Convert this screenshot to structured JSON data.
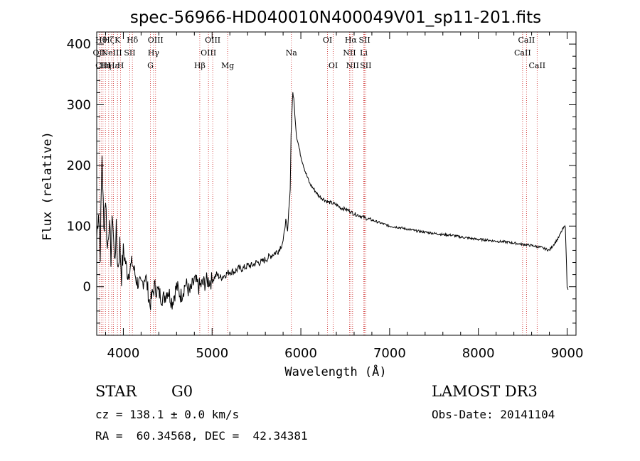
{
  "chart_data": {
    "type": "line",
    "title": "spec-56966-HD040010N400049V01_sp11-201.fits",
    "xlabel": "Wavelength (Å)",
    "ylabel": "Flux (relative)",
    "xlim": [
      3700,
      9100
    ],
    "ylim": [
      -80,
      420
    ],
    "xticks": [
      4000,
      5000,
      6000,
      7000,
      8000,
      9000
    ],
    "xtick_labels": [
      "4000",
      "5000",
      "6000",
      "7000",
      "8000",
      "9000"
    ],
    "yticks": [
      0,
      100,
      200,
      300,
      400
    ],
    "ytick_labels": [
      "0",
      "100",
      "200",
      "300",
      "400"
    ],
    "series": [
      {
        "name": "spectrum",
        "x": [
          3700,
          3720,
          3740,
          3760,
          3780,
          3800,
          3820,
          3840,
          3860,
          3880,
          3900,
          3920,
          3940,
          3960,
          3980,
          4000,
          4050,
          4100,
          4150,
          4200,
          4250,
          4300,
          4350,
          4400,
          4450,
          4500,
          4550,
          4600,
          4650,
          4700,
          4750,
          4800,
          4850,
          4900,
          4950,
          5000,
          5050,
          5100,
          5150,
          5200,
          5250,
          5300,
          5350,
          5400,
          5450,
          5500,
          5550,
          5600,
          5650,
          5700,
          5750,
          5800,
          5830,
          5850,
          5870,
          5880,
          5890,
          5900,
          5910,
          5920,
          5950,
          6000,
          6050,
          6100,
          6150,
          6200,
          6250,
          6300,
          6350,
          6400,
          6450,
          6500,
          6550,
          6600,
          6650,
          6700,
          6750,
          6800,
          6900,
          7000,
          7100,
          7200,
          7300,
          7400,
          7500,
          7600,
          7700,
          7800,
          7900,
          8000,
          8100,
          8200,
          8300,
          8400,
          8500,
          8600,
          8700,
          8800,
          8900,
          8950,
          8980,
          9000,
          9010
        ],
        "values": [
          80,
          130,
          60,
          220,
          90,
          150,
          60,
          110,
          50,
          120,
          40,
          90,
          30,
          70,
          20,
          60,
          20,
          40,
          10,
          0,
          20,
          -30,
          0,
          -10,
          -20,
          -5,
          -25,
          0,
          -15,
          5,
          -10,
          10,
          0,
          5,
          10,
          10,
          20,
          15,
          20,
          25,
          25,
          30,
          30,
          35,
          35,
          40,
          40,
          45,
          50,
          55,
          60,
          75,
          110,
          90,
          140,
          160,
          250,
          290,
          320,
          310,
          250,
          215,
          190,
          170,
          160,
          150,
          145,
          140,
          138,
          135,
          130,
          128,
          125,
          120,
          118,
          115,
          112,
          110,
          105,
          100,
          98,
          95,
          92,
          90,
          88,
          86,
          85,
          82,
          80,
          78,
          77,
          75,
          74,
          72,
          70,
          68,
          65,
          60,
          80,
          95,
          100,
          0,
          -5
        ]
      }
    ],
    "lines": [
      {
        "wave": 3727,
        "label": "OII",
        "row": 1
      },
      {
        "wave": 3750,
        "label": "Hθ",
        "row": 0
      },
      {
        "wave": 3771,
        "label": "CIII",
        "row": 2
      },
      {
        "wave": 3798,
        "label": "Hη",
        "row": 2
      },
      {
        "wave": 3835,
        "label": "Hζ",
        "row": 0
      },
      {
        "wave": 3869,
        "label": "NeIII",
        "row": 1
      },
      {
        "wave": 3889,
        "label": "Hε",
        "row": 2
      },
      {
        "wave": 3934,
        "label": "K",
        "row": 0
      },
      {
        "wave": 3969,
        "label": "H",
        "row": 2
      },
      {
        "wave": 4072,
        "label": "SII",
        "row": 1
      },
      {
        "wave": 4102,
        "label": "Hδ",
        "row": 0
      },
      {
        "wave": 4305,
        "label": "G",
        "row": 2
      },
      {
        "wave": 4340,
        "label": "Hγ",
        "row": 1
      },
      {
        "wave": 4363,
        "label": "OIII",
        "row": 0
      },
      {
        "wave": 4861,
        "label": "Hβ",
        "row": 2
      },
      {
        "wave": 4959,
        "label": "OIII",
        "row": 1
      },
      {
        "wave": 5007,
        "label": "OIII",
        "row": 0
      },
      {
        "wave": 5175,
        "label": "Mg",
        "row": 2
      },
      {
        "wave": 5893,
        "label": "Na",
        "row": 1
      },
      {
        "wave": 6300,
        "label": "OI",
        "row": 0
      },
      {
        "wave": 6364,
        "label": "OI",
        "row": 2
      },
      {
        "wave": 6548,
        "label": "NII",
        "row": 1
      },
      {
        "wave": 6563,
        "label": "Hα",
        "row": 0
      },
      {
        "wave": 6583,
        "label": "NII",
        "row": 2
      },
      {
        "wave": 6708,
        "label": "Li",
        "row": 1
      },
      {
        "wave": 6717,
        "label": "SII",
        "row": 0
      },
      {
        "wave": 6731,
        "label": "SII",
        "row": 2
      },
      {
        "wave": 8498,
        "label": "CaII",
        "row": 1
      },
      {
        "wave": 8542,
        "label": "CaII",
        "row": 0
      },
      {
        "wave": 8662,
        "label": "CaII",
        "row": 2
      }
    ]
  },
  "info": {
    "class": "STAR",
    "subclass": "G0",
    "survey": "LAMOST DR3",
    "redshift": "cz = 138.1 ± 0.0 km/s",
    "obs_date": "Obs-Date: 20141104",
    "coords": "RA =  60.34568, DEC =  42.34381"
  },
  "colors": {
    "spectrum": "#000000",
    "line_markers": "#cc2222",
    "axes": "#000000"
  }
}
